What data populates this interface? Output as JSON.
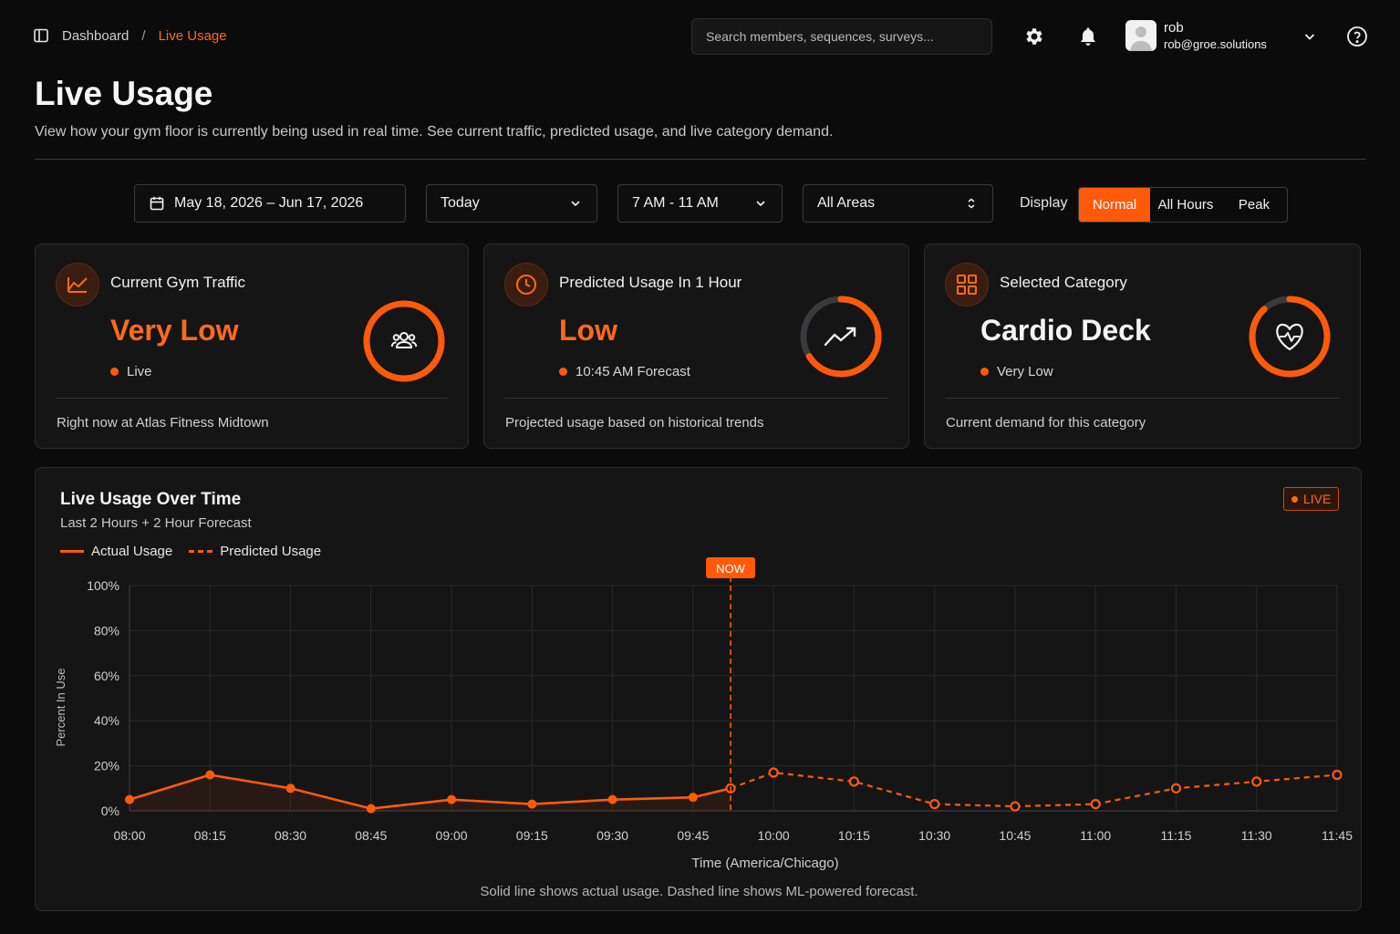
{
  "breadcrumb": {
    "root": "Dashboard",
    "separator": "/",
    "current": "Live Usage",
    "icon": "sidebar-icon"
  },
  "search": {
    "placeholder": "Search members, sequences, surveys..."
  },
  "user": {
    "name": "rob",
    "email": "rob@groe.solutions"
  },
  "page": {
    "title": "Live Usage",
    "subtitle": "View how your gym floor is currently being used in real time. See current traffic, predicted usage, and live category demand."
  },
  "filters": {
    "date_range": "May 18, 2026 – Jun 17, 2026",
    "day": "Today",
    "hours": "7 AM - 11 AM",
    "area": "All Areas",
    "display_label": "Display",
    "display_options": [
      "Normal",
      "All Hours",
      "Peak"
    ],
    "display_selected": "Normal"
  },
  "cards": [
    {
      "title": "Current Gym Traffic",
      "value": "Very Low",
      "status": "Live",
      "footer": "Right now at Atlas Fitness Midtown",
      "icon": "trend-line-icon",
      "ring_icon": "users-icon",
      "ring_fill": 1.0
    },
    {
      "title": "Predicted Usage In 1 Hour",
      "value": "Low",
      "status": "10:45 AM Forecast",
      "footer": "Projected usage based on historical trends",
      "icon": "clock-icon",
      "ring_icon": "trending-up-icon",
      "ring_fill": 0.66
    },
    {
      "title": "Selected Category",
      "value": "Cardio Deck",
      "status": "Very Low",
      "footer": "Current demand for this category",
      "icon": "grid-icon",
      "ring_icon": "heart-pulse-icon",
      "ring_fill": 0.88
    }
  ],
  "chart_panel": {
    "title": "Live Usage Over Time",
    "subtitle": "Last 2 Hours + 2 Hour Forecast",
    "live_badge": "LIVE",
    "caption": "Solid line shows actual usage. Dashed line shows ML-powered forecast."
  },
  "colors": {
    "accent": "#ff5a0a",
    "background": "#0b0b0c",
    "card": "#151516"
  },
  "chart_data": {
    "type": "line",
    "xlabel": "Time (America/Chicago)",
    "ylabel": "Percent In Use",
    "ylim": [
      0,
      100
    ],
    "yticks": [
      "0%",
      "20%",
      "40%",
      "60%",
      "80%",
      "100%"
    ],
    "categories": [
      "08:00",
      "08:15",
      "08:30",
      "08:45",
      "09:00",
      "09:15",
      "09:30",
      "09:45",
      "10:00",
      "10:15",
      "10:30",
      "10:45",
      "11:00",
      "11:15",
      "11:30",
      "11:45"
    ],
    "now_label": "NOW",
    "now_time": "09:52",
    "series": [
      {
        "name": "Actual Usage",
        "style": "solid",
        "x": [
          "08:00",
          "08:15",
          "08:30",
          "08:45",
          "09:00",
          "09:15",
          "09:30",
          "09:45",
          "09:52"
        ],
        "values": [
          5,
          16,
          10,
          1,
          5,
          3,
          5,
          6,
          10
        ]
      },
      {
        "name": "Predicted Usage",
        "style": "dashed",
        "x": [
          "09:52",
          "10:00",
          "10:15",
          "10:30",
          "10:45",
          "11:00",
          "11:15",
          "11:30",
          "11:45"
        ],
        "values": [
          10,
          17,
          13,
          3,
          2,
          3,
          10,
          13,
          16
        ]
      }
    ],
    "grid": true,
    "legend": "top-left"
  }
}
